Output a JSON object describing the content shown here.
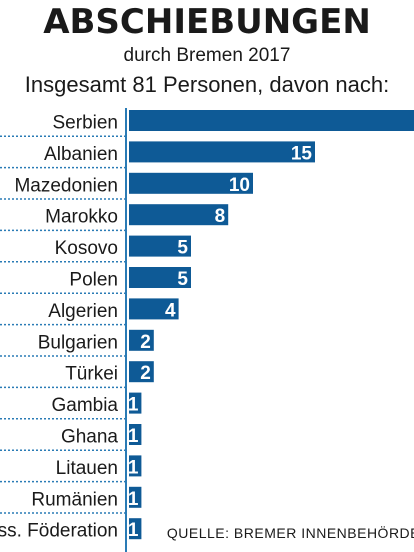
{
  "title": "ABSCHIEBUNGEN",
  "subtitle": "durch Bremen 2017",
  "intro": "Insgesamt 81 Personen, davon nach:",
  "source": "QUELLE: BREMER INNENBEHÖRDE",
  "colors": {
    "bar": "#0e5a96",
    "divider": "#2a7bb5",
    "text": "#1a1a1a"
  },
  "chart_data": {
    "type": "bar",
    "orientation": "horizontal",
    "categories": [
      "Serbien",
      "Albanien",
      "Mazedonien",
      "Marokko",
      "Kosovo",
      "Polen",
      "Algerien",
      "Bulgarien",
      "Türkei",
      "Gambia",
      "Ghana",
      "Litauen",
      "Rumänien",
      "Russ. Föderation"
    ],
    "values": [
      null,
      15,
      10,
      8,
      5,
      5,
      4,
      2,
      2,
      1,
      1,
      1,
      1,
      1
    ],
    "value_labels": [
      "",
      "15",
      "10",
      "8",
      "5",
      "5",
      "4",
      "2",
      "2",
      "1",
      "1",
      "1",
      "1",
      "1"
    ]
  }
}
